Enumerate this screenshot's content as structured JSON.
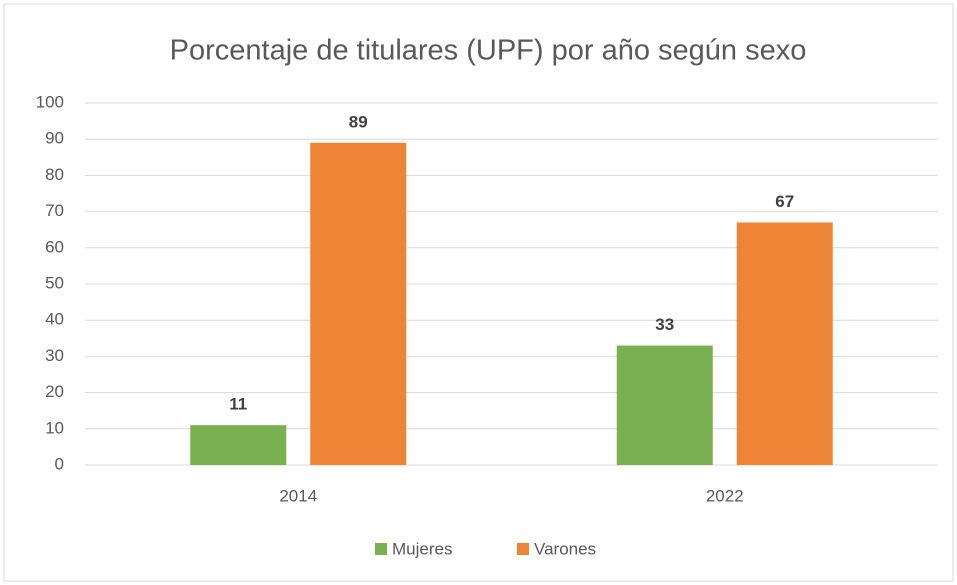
{
  "chart_data": {
    "type": "bar",
    "title": "Porcentaje de titulares (UPF) por año según sexo",
    "categories": [
      "2014",
      "2022"
    ],
    "series": [
      {
        "name": "Mujeres",
        "color": "#7ab150",
        "values": [
          11,
          33
        ]
      },
      {
        "name": "Varones",
        "color": "#ee8536",
        "values": [
          89,
          67
        ]
      }
    ],
    "ylim": [
      0,
      100
    ],
    "yticks": [
      0,
      10,
      20,
      30,
      40,
      50,
      60,
      70,
      80,
      90,
      100
    ],
    "grid": true,
    "legend": "bottom"
  }
}
